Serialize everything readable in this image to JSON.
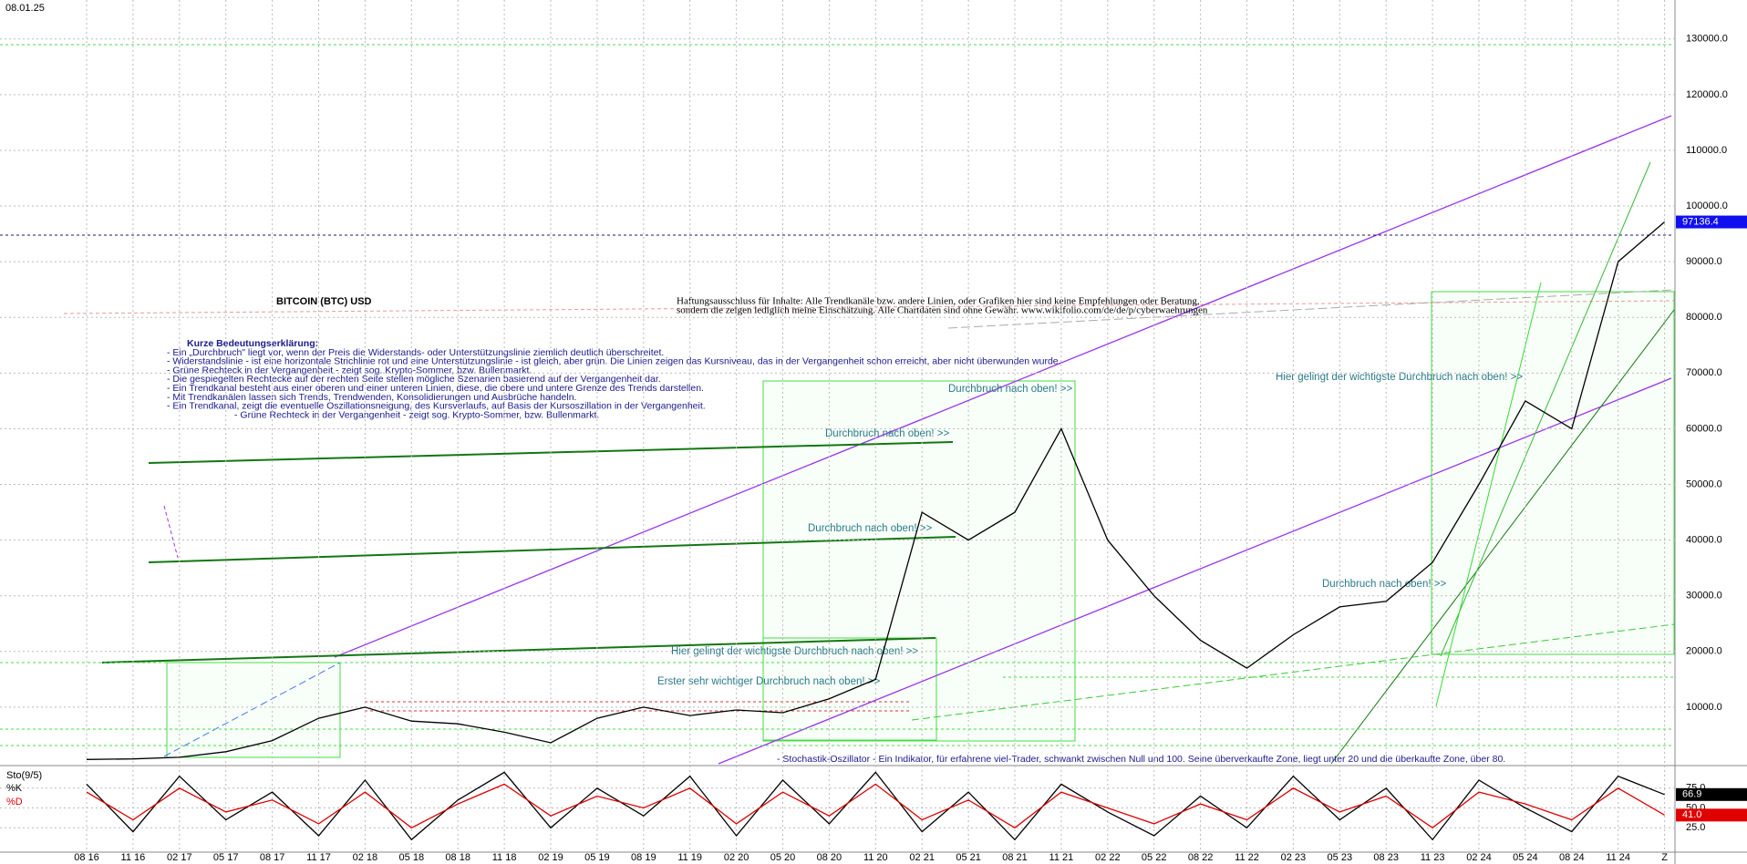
{
  "date": "08.01.25",
  "chart_data": [
    {
      "type": "line",
      "title": "BITCOIN (BTC) USD",
      "disclaimer": [
        "Haftungsausschluss für Inhalte: Alle Trendkanäle bzw. andere Linien, oder Grafiken hier sind keine Empfehlungen oder Beratung,",
        "sondern die zeigen lediglich meine Einschätzung. Alle Chartdaten sind ohne Gewähr.  www.wikifolio.com/de/de/p/cyberwaehrungen"
      ],
      "notes_title": "Kurze Bedeutungserklärung:",
      "notes": [
        "- Ein „Durchbruch\" liegt vor, wenn der Preis die Widerstands- oder Unterstützungslinie ziemlich deutlich überschreitet.",
        "- Widerstandslinie - ist eine horizontale Strichlinie rot und eine Unterstützungslinie - ist gleich, aber grün. Die Linien zeigen das Kursniveau, das in der Vergangenheit schon erreicht, aber nicht überwunden wurde.",
        "- Grüne Rechteck in der Vergangenheit - zeigt sog. Krypto-Sommer, bzw. Bullenmarkt.",
        "- Die gespiegelten Rechtecke auf der rechten Seite stellen mögliche Szenarien basierend auf der Vergangenheit dar.",
        "- Ein Trendkanal besteht aus einer oberen und einer unteren Linien, diese, die obere und untere Grenze des Trends darstellen.",
        "- Mit Trendkanälen lassen sich Trends, Trendwenden, Konsolidierungen und Ausbrüche handeln.",
        "- Ein Trendkanal, zeigt die eventuelle Oszillationsneigung, des Kursverlaufs, auf Basis der Kursoszillation in der Vergangenheit.",
        "- Grüne Rechteck in der Vergangenheit - zeigt sog. Krypto-Sommer, bzw. Bullenmarkt."
      ],
      "annotations": [
        "Durchbruch nach oben! >>",
        "Durchbruch nach oben! >>",
        "Durchbruch nach oben! >>",
        "Durchbruch nach oben! >>",
        "Hier gelingt der wichtigste Durchbruch nach oben! >>",
        "Hier gelingt der wichtigste Durchbruch nach oben! >>",
        "Erster sehr wichtiger Durchbruch nach oben! >>"
      ],
      "categories": [
        "08 16",
        "11 16",
        "02 17",
        "05 17",
        "08 17",
        "11 17",
        "02 18",
        "05 18",
        "08 18",
        "11 18",
        "02 19",
        "05 19",
        "08 19",
        "11 19",
        "02 20",
        "05 20",
        "08 20",
        "11 20",
        "02 21",
        "05 21",
        "08 21",
        "11 21",
        "02 22",
        "05 22",
        "08 22",
        "11 22",
        "02 23",
        "05 23",
        "08 23",
        "11 23",
        "02 24",
        "05 24",
        "08 24",
        "11 24",
        "Z"
      ],
      "series": [
        {
          "name": "BTC",
          "color": "#000000",
          "values": [
            600,
            700,
            1000,
            2000,
            4000,
            8000,
            10000,
            7500,
            7000,
            5500,
            3600,
            8000,
            10000,
            8500,
            9500,
            9000,
            11500,
            15000,
            45000,
            40000,
            45000,
            60000,
            40000,
            30000,
            22000,
            17000,
            23000,
            28000,
            29000,
            36000,
            50000,
            65000,
            60000,
            90000,
            97136.4
          ]
        }
      ],
      "ylim": [
        0,
        137000
      ],
      "yticks": [
        {
          "value": 10000,
          "label": "10000.0"
        },
        {
          "value": 20000,
          "label": "20000.0"
        },
        {
          "value": 30000,
          "label": "30000.0"
        },
        {
          "value": 40000,
          "label": "40000.0"
        },
        {
          "value": 50000,
          "label": "50000.0"
        },
        {
          "value": 60000,
          "label": "60000.0"
        },
        {
          "value": 70000,
          "label": "70000.0"
        },
        {
          "value": 80000,
          "label": "80000.0"
        },
        {
          "value": 90000,
          "label": "90000.0"
        },
        {
          "value": 100000,
          "label": "100000.0"
        },
        {
          "value": 110000,
          "label": "110000.0"
        },
        {
          "value": 120000,
          "label": "120000.0"
        },
        {
          "value": 130000,
          "label": "130000.0"
        }
      ],
      "grid": true
    },
    {
      "type": "line",
      "title": "Sto(9/5)",
      "description": "- Stochastik-Oszillator - Ein Indikator, für erfahrene viel-Trader, schwankt zwischen Null und 100. Seine überverkaufte Zone, liegt unter 20 und die überkaufte Zone, über 80.",
      "categories_from": "chart_data.0.categories",
      "series": [
        {
          "name": "%K",
          "color": "#000000",
          "values": [
            80,
            20,
            90,
            35,
            70,
            15,
            85,
            10,
            60,
            95,
            25,
            75,
            40,
            90,
            15,
            85,
            30,
            95,
            20,
            70,
            10,
            80,
            45,
            15,
            65,
            25,
            90,
            35,
            75,
            10,
            85,
            50,
            20,
            90,
            66.9
          ]
        },
        {
          "name": "%D",
          "color": "#e00000",
          "values": [
            70,
            35,
            75,
            45,
            60,
            30,
            70,
            25,
            55,
            80,
            40,
            65,
            50,
            75,
            30,
            70,
            40,
            80,
            35,
            60,
            25,
            70,
            50,
            30,
            55,
            35,
            75,
            45,
            65,
            25,
            70,
            55,
            35,
            75,
            41
          ],
          "last_value_label": "41.0"
        }
      ],
      "ylim": [
        0,
        100
      ],
      "yticks": [
        {
          "value": 25,
          "label": "25.0"
        },
        {
          "value": 50,
          "label": "50.0"
        },
        {
          "value": 75,
          "label": "75.0"
        }
      ]
    }
  ]
}
